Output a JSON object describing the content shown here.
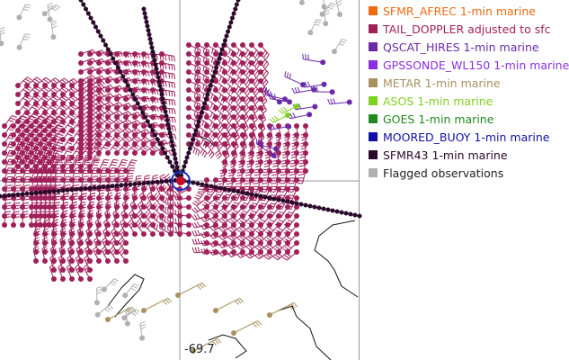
{
  "map": {
    "longitude_label": "-69.7",
    "colors": {
      "background": "#ffffff",
      "coastline": "#111111",
      "grid": "#9a9a9a",
      "storm_center": "#c0102a",
      "storm_ring": "#1030c0"
    }
  },
  "legend": {
    "items": [
      {
        "label": "SFMR_AFREC 1-min marine",
        "color": "#f06a10",
        "text_color": "#f06a10"
      },
      {
        "label": "TAIL_DOPPLER adjusted to sfc",
        "color": "#a0205a",
        "text_color": "#a0205a"
      },
      {
        "label": "QSCAT_HIRES 1-min marine",
        "color": "#6a2aa8",
        "text_color": "#6a2aa8"
      },
      {
        "label": "GPSSONDE_WL150 1-min marine",
        "color": "#8a30e0",
        "text_color": "#8a30e0"
      },
      {
        "label": "METAR 1-min marine",
        "color": "#a89060",
        "text_color": "#a89060"
      },
      {
        "label": "ASOS 1-min marine",
        "color": "#80d020",
        "text_color": "#80d020"
      },
      {
        "label": "GOES 1-min marine",
        "color": "#208a20",
        "text_color": "#208a20"
      },
      {
        "label": "MOORED_BUOY 1-min marine",
        "color": "#1010a8",
        "text_color": "#1010a8"
      },
      {
        "label": "SFMR43 1-min marine",
        "color": "#2a0a2a",
        "text_color": "#2a0a2a"
      },
      {
        "label": "Flagged observations",
        "color": "#b0b0b0",
        "text_color": "#222222"
      }
    ]
  }
}
